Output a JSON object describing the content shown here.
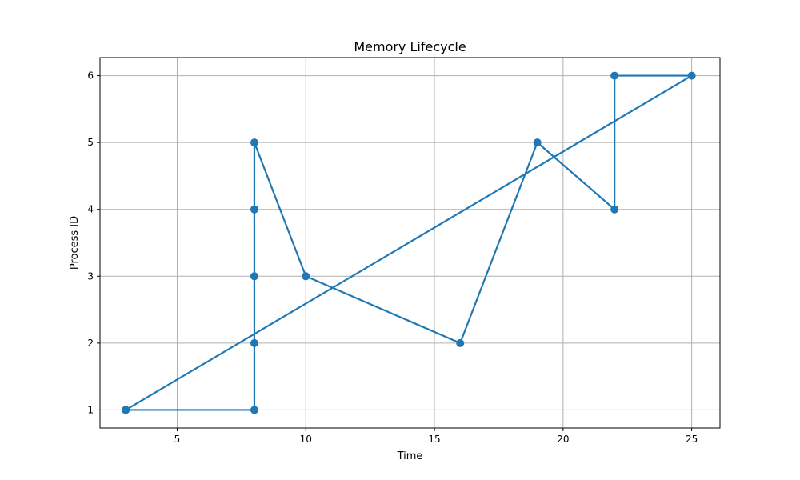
{
  "chart_data": {
    "type": "line",
    "title": "Memory Lifecycle",
    "xlabel": "Time",
    "ylabel": "Process ID",
    "xlim": [
      2,
      26.1
    ],
    "ylim": [
      0.73,
      6.27
    ],
    "xticks": [
      5,
      10,
      15,
      20,
      25
    ],
    "yticks": [
      1,
      2,
      3,
      4,
      5,
      6
    ],
    "grid": true,
    "series": [
      {
        "color": "#1f77b4",
        "marker": "circle",
        "points": [
          {
            "x": 3,
            "y": 1
          },
          {
            "x": 8,
            "y": 1
          },
          {
            "x": 8,
            "y": 2
          },
          {
            "x": 8,
            "y": 3
          },
          {
            "x": 8,
            "y": 4
          },
          {
            "x": 8,
            "y": 5
          },
          {
            "x": 10,
            "y": 3
          },
          {
            "x": 16,
            "y": 2
          },
          {
            "x": 19,
            "y": 5
          },
          {
            "x": 22,
            "y": 4
          },
          {
            "x": 22,
            "y": 6
          },
          {
            "x": 25,
            "y": 6
          },
          {
            "x": 3,
            "y": 1
          }
        ]
      }
    ]
  }
}
